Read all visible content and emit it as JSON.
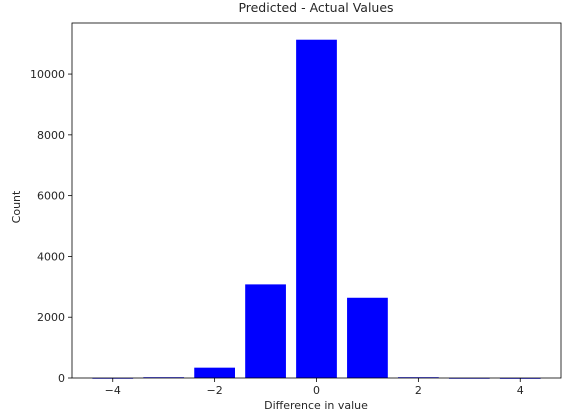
{
  "chart_data": {
    "type": "bar",
    "title": "Predicted - Actual Values",
    "xlabel": "Difference in value",
    "ylabel": "Count",
    "x": [
      -4,
      -3,
      -2,
      -1,
      0,
      1,
      2,
      3,
      4
    ],
    "values": [
      3,
      25,
      340,
      3080,
      11130,
      2640,
      25,
      3,
      1
    ],
    "bar_color": "#0000ff",
    "xlim": [
      -4.8,
      4.8
    ],
    "ylim": [
      0,
      11680
    ],
    "xticks": [
      -4,
      -2,
      0,
      2,
      4
    ],
    "xtick_labels": [
      "−4",
      "−2",
      "0",
      "2",
      "4"
    ],
    "yticks": [
      0,
      2000,
      4000,
      6000,
      8000,
      10000
    ],
    "ytick_labels": [
      "0",
      "2000",
      "4000",
      "6000",
      "8000",
      "10000"
    ],
    "grid": false,
    "legend": "none"
  }
}
